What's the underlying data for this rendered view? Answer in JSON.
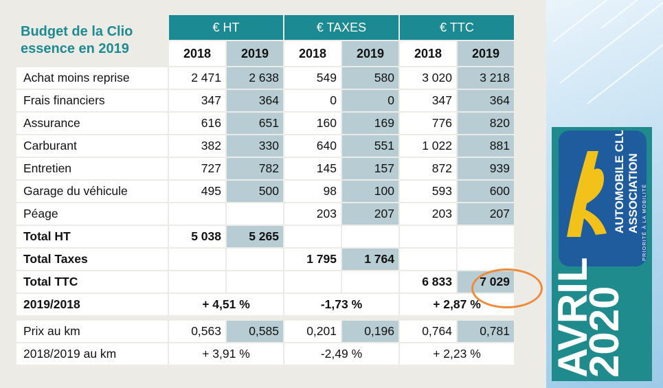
{
  "title": "Budget de la Clio essence en 2019",
  "groups": [
    "€ HT",
    "€ TAXES",
    "€ TTC"
  ],
  "years": [
    "2018",
    "2019"
  ],
  "rows": [
    {
      "label": "Achat moins reprise",
      "values": [
        "2 471",
        "2 638",
        "549",
        "580",
        "3 020",
        "3 218"
      ]
    },
    {
      "label": "Frais financiers",
      "values": [
        "347",
        "364",
        "0",
        "0",
        "347",
        "364"
      ]
    },
    {
      "label": "Assurance",
      "values": [
        "616",
        "651",
        "160",
        "169",
        "776",
        "820"
      ]
    },
    {
      "label": "Carburant",
      "values": [
        "382",
        "330",
        "640",
        "551",
        "1 022",
        "881"
      ]
    },
    {
      "label": "Entretien",
      "values": [
        "727",
        "782",
        "145",
        "157",
        "872",
        "939"
      ]
    },
    {
      "label": "Garage du véhicule",
      "values": [
        "495",
        "500",
        "98",
        "100",
        "593",
        "600"
      ]
    },
    {
      "label": "Péage",
      "values": [
        "",
        "",
        "203",
        "207",
        "203",
        "207"
      ]
    }
  ],
  "totals": {
    "total_ht": {
      "label": "Total HT",
      "v2018": "5 038",
      "v2019": "5 265"
    },
    "total_taxes": {
      "label": "Total Taxes",
      "v2018": "1 795",
      "v2019": "1 764"
    },
    "total_ttc": {
      "label": "Total TTC",
      "v2018": "6 833",
      "v2019": "7 029"
    },
    "evolution": {
      "label": "2019/2018",
      "ht": "+ 4,51 %",
      "taxes": "-1,73 %",
      "ttc": "+ 2,87 %"
    }
  },
  "per_km": {
    "label": "Prix au km",
    "values": [
      "0,563",
      "0,585",
      "0,201",
      "0,196",
      "0,764",
      "0,781"
    ],
    "evolution_label": "2018/2019 au km",
    "evolution": [
      "+ 3,91 %",
      "-2,49 %",
      "+ 2,23 %"
    ]
  },
  "colors": {
    "accent": "#1b8a92",
    "highlight": "#b7cdd3",
    "circle": "#ef8b38",
    "logo_yellow": "#f2c21b"
  },
  "cover": {
    "logo_text_1": "AUTOMOBILE CLUB",
    "logo_text_2": "ASSOCIATION",
    "tagline": "PRIORITÉ À LA MOBILITÉ",
    "month": "AVRIL",
    "year": "2020"
  }
}
